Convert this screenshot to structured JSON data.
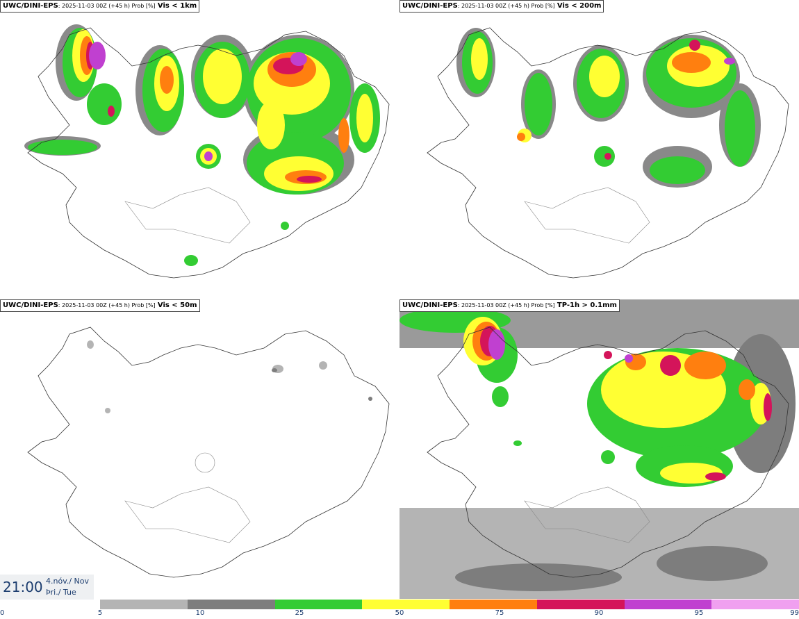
{
  "panels": [
    {
      "model": "UWC/DINI-EPS",
      "meta": ": 2025-11-03 00Z (+45 h) Prob [%]",
      "variable": "Vis < 1km"
    },
    {
      "model": "UWC/DINI-EPS",
      "meta": ": 2025-11-03 00Z (+45 h) Prob [%]",
      "variable": "Vis < 200m"
    },
    {
      "model": "UWC/DINI-EPS",
      "meta": ": 2025-11-03 00Z (+45 h) Prob [%]",
      "variable": "Vis < 50m"
    },
    {
      "model": "UWC/DINI-EPS",
      "meta": ": 2025-11-03 00Z (+45 h) Prob [%]",
      "variable": "TP-1h > 0.1mm"
    }
  ],
  "valid_time": {
    "hour": "21:00",
    "date": "4.nóv./ Nov",
    "weekday": "Þri./ Tue"
  },
  "legend": {
    "ticks": [
      "0",
      "5",
      "10",
      "25",
      "50",
      "75",
      "90",
      "95",
      "99"
    ],
    "colors": [
      "#b4b4b4",
      "#7d7d7d",
      "#33cc33",
      "#ffff33",
      "#ff7f0f",
      "#d4145a",
      "#c040d0",
      "#f0a0f0"
    ]
  }
}
